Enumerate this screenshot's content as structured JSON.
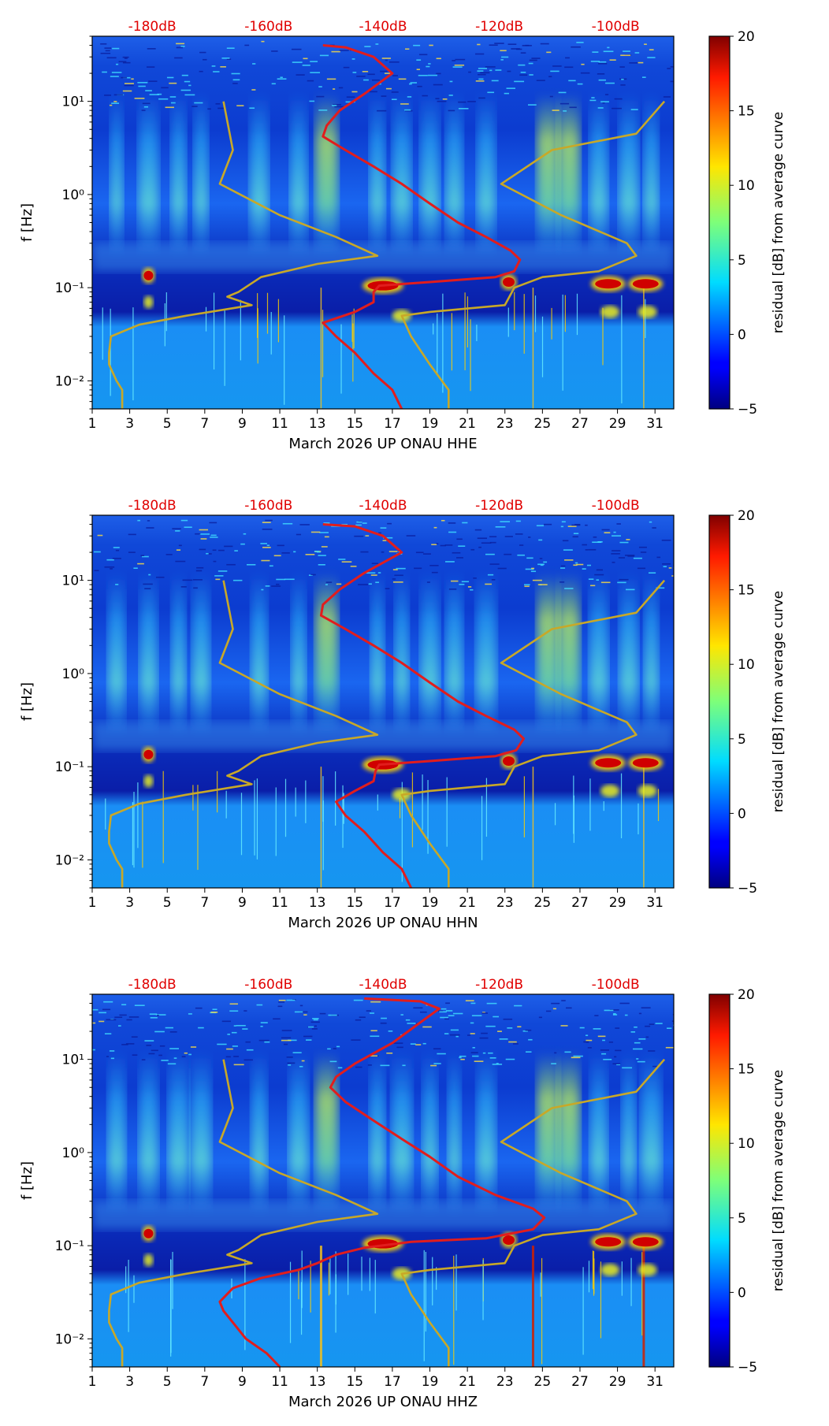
{
  "chart_data": [
    {
      "type": "heatmap",
      "channel": "HHE",
      "xlabel": "March 2026 UP ONAU  HHE",
      "ylabel": "f [Hz]",
      "x_ticks": [
        "1",
        "3",
        "5",
        "7",
        "9",
        "11",
        "13",
        "15",
        "17",
        "19",
        "21",
        "23",
        "25",
        "27",
        "29",
        "31"
      ],
      "xlim": [
        1,
        32
      ],
      "y_ticks": [
        {
          "value": 10,
          "label": "10¹"
        },
        {
          "value": 1,
          "label": "10⁰"
        },
        {
          "value": 0.1,
          "label": "10⁻¹"
        },
        {
          "value": 0.01,
          "label": "10⁻²"
        }
      ],
      "ylim": [
        0.005,
        50
      ],
      "y_scale": "log",
      "top_axis_labels": [
        "-180dB",
        "-160dB",
        "-140dB",
        "-120dB",
        "-100dB"
      ],
      "colorbar": {
        "label": "residual [dB] from average curve",
        "range": [
          -5,
          20
        ],
        "ticks": [
          "20",
          "15",
          "10",
          "5",
          "0",
          "−5"
        ],
        "colormap": "jet"
      },
      "series": [
        {
          "color": "#e11d1d",
          "style": "median-psd",
          "points": [
            [
              13.3,
              40
            ],
            [
              14.5,
              38
            ],
            [
              16,
              30
            ],
            [
              17,
              20
            ],
            [
              15.5,
              12
            ],
            [
              14.2,
              8
            ],
            [
              13.5,
              5.5
            ],
            [
              13.3,
              4.2
            ],
            [
              14.5,
              3
            ],
            [
              16,
              2
            ],
            [
              17.5,
              1.3
            ],
            [
              19,
              0.8
            ],
            [
              20.5,
              0.5
            ],
            [
              22,
              0.35
            ],
            [
              23.3,
              0.25
            ],
            [
              23.8,
              0.2
            ],
            [
              23.5,
              0.15
            ],
            [
              22.5,
              0.13
            ],
            [
              19,
              0.115
            ],
            [
              16.3,
              0.105
            ],
            [
              16,
              0.09
            ],
            [
              16,
              0.07
            ],
            [
              15,
              0.055
            ],
            [
              13.3,
              0.042
            ],
            [
              14,
              0.03
            ],
            [
              15,
              0.02
            ],
            [
              16,
              0.012
            ],
            [
              17,
              0.008
            ],
            [
              17.5,
              0.005
            ]
          ]
        },
        {
          "color": "#c8a828",
          "style": "noise-model-low",
          "points": [
            [
              8,
              10
            ],
            [
              8.5,
              3
            ],
            [
              7.8,
              1.3
            ],
            [
              11,
              0.6
            ],
            [
              14,
              0.35
            ],
            [
              16.2,
              0.22
            ],
            [
              13,
              0.18
            ],
            [
              10,
              0.13
            ],
            [
              8.8,
              0.09
            ],
            [
              8.2,
              0.08
            ],
            [
              9.5,
              0.065
            ],
            [
              6,
              0.05
            ],
            [
              3.5,
              0.04
            ],
            [
              2,
              0.03
            ],
            [
              1.9,
              0.02
            ],
            [
              1.9,
              0.015
            ],
            [
              2.3,
              0.01
            ],
            [
              2.6,
              0.008
            ],
            [
              2.6,
              0.005
            ]
          ]
        },
        {
          "color": "#c8a828",
          "style": "noise-model-high",
          "points": [
            [
              31.5,
              10
            ],
            [
              30,
              4.5
            ],
            [
              25.5,
              3
            ],
            [
              22.8,
              1.3
            ],
            [
              26,
              0.6
            ],
            [
              29.5,
              0.3
            ],
            [
              30,
              0.22
            ],
            [
              28,
              0.15
            ],
            [
              25,
              0.13
            ],
            [
              23.5,
              0.1
            ],
            [
              23,
              0.065
            ],
            [
              19,
              0.055
            ],
            [
              17.5,
              0.05
            ],
            [
              18,
              0.03
            ],
            [
              19,
              0.015
            ],
            [
              20,
              0.008
            ],
            [
              20,
              0.005
            ]
          ]
        }
      ]
    },
    {
      "type": "heatmap",
      "channel": "HHN",
      "xlabel": "March 2026 UP ONAU  HHN",
      "ylabel": "f [Hz]",
      "x_ticks": [
        "1",
        "3",
        "5",
        "7",
        "9",
        "11",
        "13",
        "15",
        "17",
        "19",
        "21",
        "23",
        "25",
        "27",
        "29",
        "31"
      ],
      "xlim": [
        1,
        32
      ],
      "y_ticks": [
        {
          "value": 10,
          "label": "10¹"
        },
        {
          "value": 1,
          "label": "10⁰"
        },
        {
          "value": 0.1,
          "label": "10⁻¹"
        },
        {
          "value": 0.01,
          "label": "10⁻²"
        }
      ],
      "ylim": [
        0.005,
        50
      ],
      "y_scale": "log",
      "top_axis_labels": [
        "-180dB",
        "-160dB",
        "-140dB",
        "-120dB",
        "-100dB"
      ],
      "colorbar": {
        "label": "residual [dB] from average curve",
        "range": [
          -5,
          20
        ],
        "ticks": [
          "20",
          "15",
          "10",
          "5",
          "0",
          "−5"
        ],
        "colormap": "jet"
      },
      "series": [
        {
          "color": "#e11d1d",
          "style": "median-psd",
          "points": [
            [
              13.3,
              40
            ],
            [
              15,
              38
            ],
            [
              16.5,
              30
            ],
            [
              17.5,
              20
            ],
            [
              15.5,
              12
            ],
            [
              14.2,
              8
            ],
            [
              13.3,
              5.5
            ],
            [
              13.2,
              4.2
            ],
            [
              14.5,
              3
            ],
            [
              16,
              2
            ],
            [
              17.5,
              1.3
            ],
            [
              19,
              0.8
            ],
            [
              20.5,
              0.5
            ],
            [
              22,
              0.35
            ],
            [
              23.5,
              0.25
            ],
            [
              24,
              0.2
            ],
            [
              23.6,
              0.15
            ],
            [
              22.5,
              0.13
            ],
            [
              19,
              0.115
            ],
            [
              16.3,
              0.105
            ],
            [
              16.1,
              0.09
            ],
            [
              16,
              0.07
            ],
            [
              15,
              0.055
            ],
            [
              14,
              0.042
            ],
            [
              14.5,
              0.03
            ],
            [
              15.5,
              0.02
            ],
            [
              16.5,
              0.012
            ],
            [
              17.5,
              0.008
            ],
            [
              18,
              0.005
            ]
          ]
        },
        {
          "color": "#c8a828",
          "style": "noise-model-low",
          "points": [
            [
              8,
              10
            ],
            [
              8.5,
              3
            ],
            [
              7.8,
              1.3
            ],
            [
              11,
              0.6
            ],
            [
              14,
              0.35
            ],
            [
              16.2,
              0.22
            ],
            [
              13,
              0.18
            ],
            [
              10,
              0.13
            ],
            [
              8.8,
              0.09
            ],
            [
              8.2,
              0.08
            ],
            [
              9.5,
              0.065
            ],
            [
              6,
              0.05
            ],
            [
              3.5,
              0.04
            ],
            [
              2,
              0.03
            ],
            [
              1.9,
              0.02
            ],
            [
              1.9,
              0.015
            ],
            [
              2.3,
              0.01
            ],
            [
              2.6,
              0.008
            ],
            [
              2.6,
              0.005
            ]
          ]
        },
        {
          "color": "#c8a828",
          "style": "noise-model-high",
          "points": [
            [
              31.5,
              10
            ],
            [
              30,
              4.5
            ],
            [
              25.5,
              3
            ],
            [
              22.8,
              1.3
            ],
            [
              26,
              0.6
            ],
            [
              29.5,
              0.3
            ],
            [
              30,
              0.22
            ],
            [
              28,
              0.15
            ],
            [
              25,
              0.13
            ],
            [
              23.5,
              0.1
            ],
            [
              23,
              0.065
            ],
            [
              19,
              0.055
            ],
            [
              17.5,
              0.05
            ],
            [
              18,
              0.03
            ],
            [
              19,
              0.015
            ],
            [
              20,
              0.008
            ],
            [
              20,
              0.005
            ]
          ]
        }
      ]
    },
    {
      "type": "heatmap",
      "channel": "HHZ",
      "xlabel": "March 2026 UP ONAU  HHZ",
      "ylabel": "f [Hz]",
      "x_ticks": [
        "1",
        "3",
        "5",
        "7",
        "9",
        "11",
        "13",
        "15",
        "17",
        "19",
        "21",
        "23",
        "25",
        "27",
        "29",
        "31"
      ],
      "xlim": [
        1,
        32
      ],
      "y_ticks": [
        {
          "value": 10,
          "label": "10¹"
        },
        {
          "value": 1,
          "label": "10⁰"
        },
        {
          "value": 0.1,
          "label": "10⁻¹"
        },
        {
          "value": 0.01,
          "label": "10⁻²"
        }
      ],
      "ylim": [
        0.005,
        50
      ],
      "y_scale": "log",
      "top_axis_labels": [
        "-180dB",
        "-160dB",
        "-140dB",
        "-120dB",
        "-100dB"
      ],
      "colorbar": {
        "label": "residual [dB] from average curve",
        "range": [
          -5,
          20
        ],
        "ticks": [
          "20",
          "15",
          "10",
          "5",
          "0",
          "−5"
        ],
        "colormap": "jet"
      },
      "series": [
        {
          "color": "#e11d1d",
          "style": "median-psd",
          "points": [
            [
              15.5,
              45
            ],
            [
              18.5,
              42
            ],
            [
              19.5,
              35
            ],
            [
              18.5,
              25
            ],
            [
              17,
              15
            ],
            [
              15,
              9
            ],
            [
              14,
              6.5
            ],
            [
              13.7,
              5
            ],
            [
              14.5,
              3.5
            ],
            [
              16,
              2.2
            ],
            [
              17.5,
              1.4
            ],
            [
              19,
              0.9
            ],
            [
              20.5,
              0.55
            ],
            [
              22.5,
              0.35
            ],
            [
              24.5,
              0.25
            ],
            [
              25.1,
              0.2
            ],
            [
              24.5,
              0.15
            ],
            [
              22,
              0.12
            ],
            [
              18,
              0.11
            ],
            [
              15.5,
              0.095
            ],
            [
              14,
              0.08
            ],
            [
              13,
              0.065
            ],
            [
              12,
              0.055
            ],
            [
              10,
              0.045
            ],
            [
              8.5,
              0.035
            ],
            [
              7.8,
              0.025
            ],
            [
              8,
              0.02
            ],
            [
              8.5,
              0.015
            ],
            [
              9.2,
              0.01
            ],
            [
              10.3,
              0.007
            ],
            [
              11,
              0.005
            ]
          ]
        },
        {
          "color": "#c8a828",
          "style": "noise-model-low",
          "points": [
            [
              8,
              10
            ],
            [
              8.5,
              3
            ],
            [
              7.8,
              1.3
            ],
            [
              11,
              0.6
            ],
            [
              14,
              0.35
            ],
            [
              16.2,
              0.22
            ],
            [
              13,
              0.18
            ],
            [
              10,
              0.13
            ],
            [
              8.8,
              0.09
            ],
            [
              8.2,
              0.08
            ],
            [
              9.5,
              0.065
            ],
            [
              6,
              0.05
            ],
            [
              3.5,
              0.04
            ],
            [
              2,
              0.03
            ],
            [
              1.9,
              0.02
            ],
            [
              1.9,
              0.015
            ],
            [
              2.3,
              0.01
            ],
            [
              2.6,
              0.008
            ],
            [
              2.6,
              0.005
            ]
          ]
        },
        {
          "color": "#c8a828",
          "style": "noise-model-high",
          "points": [
            [
              31.5,
              10
            ],
            [
              30,
              4.5
            ],
            [
              25.5,
              3
            ],
            [
              22.8,
              1.3
            ],
            [
              26,
              0.6
            ],
            [
              29.5,
              0.3
            ],
            [
              30,
              0.22
            ],
            [
              28,
              0.15
            ],
            [
              25,
              0.13
            ],
            [
              23.5,
              0.1
            ],
            [
              23,
              0.065
            ],
            [
              19,
              0.055
            ],
            [
              17.5,
              0.05
            ],
            [
              18,
              0.03
            ],
            [
              19,
              0.015
            ],
            [
              20,
              0.008
            ],
            [
              20,
              0.005
            ]
          ]
        }
      ]
    }
  ]
}
